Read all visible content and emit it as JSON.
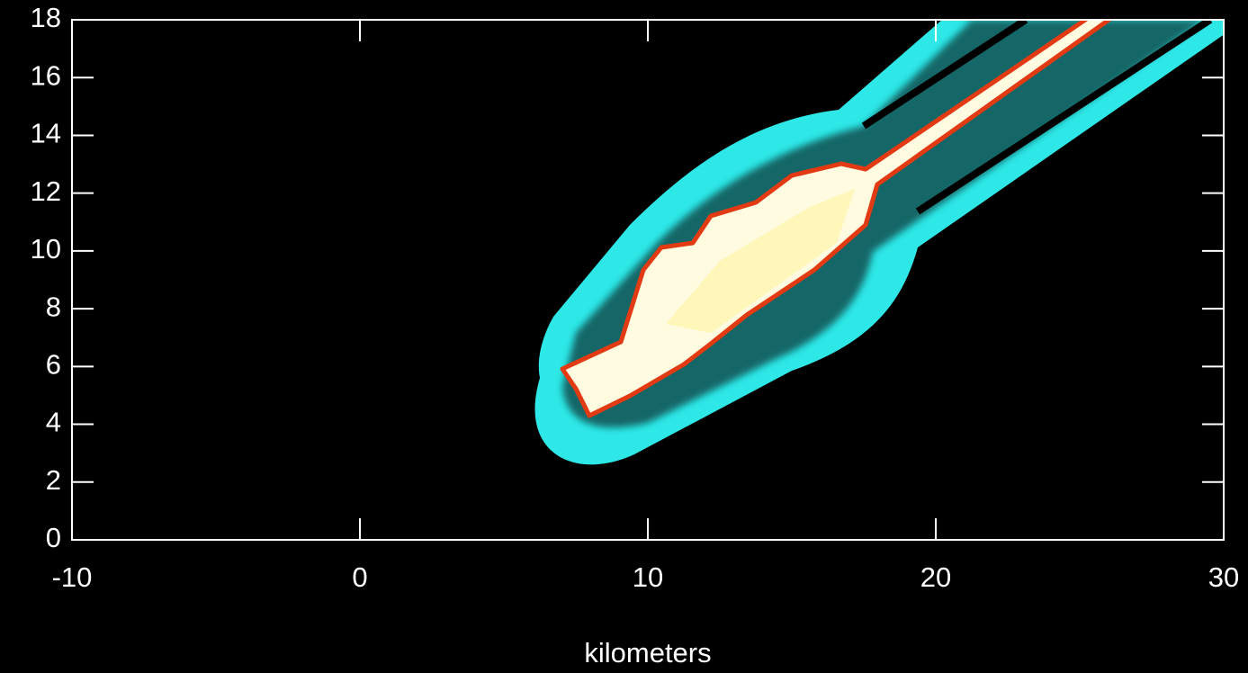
{
  "chart_data": {
    "type": "image",
    "xlabel": "kilometers",
    "xlim": [
      -10,
      30
    ],
    "xticks": [
      -10,
      0,
      10,
      20,
      30
    ],
    "ylim": [
      0,
      18
    ],
    "yticks": [
      0,
      2,
      4,
      6,
      8,
      10,
      12,
      14,
      16,
      18
    ]
  }
}
